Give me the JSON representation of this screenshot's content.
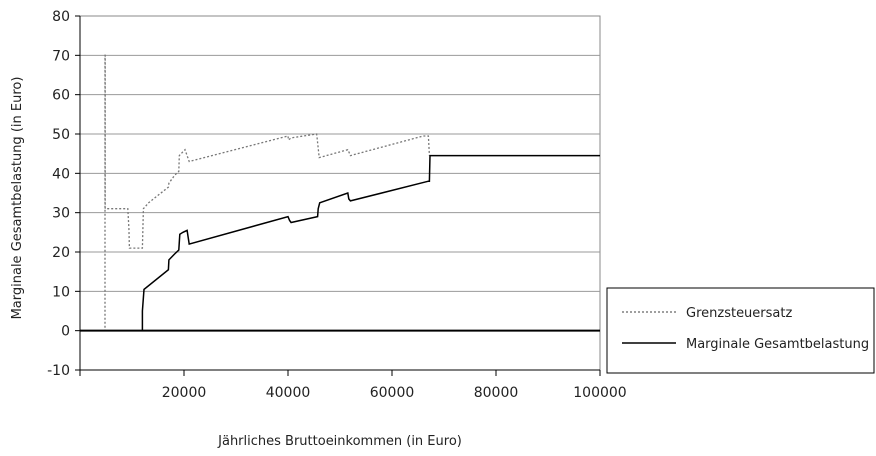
{
  "chart_data": {
    "type": "line",
    "title": "",
    "xlabel": "Jährliches Bruttoeinkommen (in Euro)",
    "ylabel": "Marginale Gesamtbelastung (in Euro)",
    "xlim": [
      0,
      100000
    ],
    "ylim": [
      -10,
      80
    ],
    "x_ticks": [
      0,
      20000,
      40000,
      60000,
      80000,
      100000
    ],
    "x_tick_labels": [
      "",
      "20000",
      "40000",
      "60000",
      "80000",
      "100000"
    ],
    "y_ticks": [
      -10,
      0,
      10,
      20,
      30,
      40,
      50,
      60,
      70,
      80
    ],
    "y_tick_labels": [
      "-10",
      "0",
      "10",
      "20",
      "30",
      "40",
      "50",
      "60",
      "70",
      "80"
    ],
    "grid": true,
    "legend_position": "right",
    "series": [
      {
        "name": "Grenzsteuersatz",
        "style": "dotted",
        "color": "#777777",
        "x": [
          0,
          4800,
          4800,
          4850,
          4850,
          9200,
          9400,
          9500,
          12000,
          12100,
          12200,
          13200,
          17000,
          17100,
          18200,
          19000,
          19100,
          19800,
          20200,
          21000,
          40000,
          40100,
          40600,
          45500,
          45600,
          46000,
          51500,
          51700,
          52000,
          66000,
          67000,
          67200
        ],
        "y": [
          0,
          0,
          70,
          70,
          31,
          31,
          26,
          21,
          21,
          26,
          31,
          32.5,
          36.5,
          37.5,
          39.5,
          40.5,
          44.5,
          45.5,
          46,
          43,
          49.5,
          48.5,
          49,
          50,
          49,
          44,
          46,
          45.5,
          44.5,
          49.5,
          49.5,
          44.5
        ]
      },
      {
        "name": "Marginale Gesamtbelastung",
        "style": "solid",
        "color": "#000000",
        "x": [
          0,
          12000,
          12000,
          12300,
          17000,
          17100,
          18200,
          19000,
          19200,
          19800,
          20600,
          21000,
          40000,
          40300,
          40600,
          45700,
          45800,
          46100,
          51500,
          51700,
          52000,
          67000,
          67200,
          67300,
          100000
        ],
        "y": [
          0,
          0,
          5,
          10.5,
          15.5,
          18,
          19.5,
          20.5,
          24.5,
          25,
          25.5,
          22,
          29,
          28,
          27.5,
          29,
          31,
          32.5,
          35,
          33.5,
          33,
          38,
          38,
          44.5,
          44.5
        ]
      }
    ]
  }
}
